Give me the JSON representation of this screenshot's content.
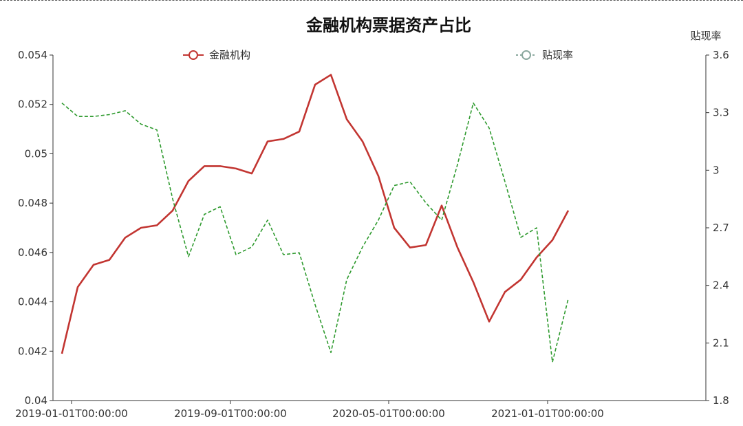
{
  "chart_data": {
    "type": "line",
    "title": "金融机构票据资产占比",
    "x_tick_labels": [
      "2019-01-01T00:00:00",
      "2019-09-01T00:00:00",
      "2020-05-01T00:00:00",
      "2021-01-01T00:00:00"
    ],
    "left_axis": {
      "ylim": [
        0.04,
        0.054
      ],
      "ticks": [
        "0.04",
        "0.042",
        "0.044",
        "0.046",
        "0.048",
        "0.05",
        "0.052",
        "0.054"
      ]
    },
    "right_axis": {
      "name": "贴现率",
      "ylim": [
        1.8,
        3.6
      ],
      "ticks": [
        "1.8",
        "2.1",
        "2.4",
        "2.7",
        "3",
        "3.3",
        "3.6"
      ]
    },
    "legend_placement": "top",
    "grid": false,
    "x": [
      "2019-01",
      "2019-02",
      "2019-03",
      "2019-04",
      "2019-05",
      "2019-06",
      "2019-07",
      "2019-08",
      "2019-09",
      "2019-10",
      "2019-11",
      "2019-12",
      "2020-01",
      "2020-02",
      "2020-03",
      "2020-04",
      "2020-05",
      "2020-06",
      "2020-07",
      "2020-08",
      "2020-09",
      "2020-10",
      "2020-11",
      "2020-12",
      "2021-01",
      "2021-02",
      "2021-03",
      "2021-04",
      "2021-05",
      "2021-06",
      "2021-07",
      "2021-08",
      "2021-09",
      "2021-10"
    ],
    "series": [
      {
        "name": "金融机构",
        "axis": "left",
        "style": "solid",
        "color": "#c23531",
        "values": [
          0.0419,
          0.0446,
          0.0455,
          0.0457,
          0.0466,
          0.047,
          0.0471,
          0.0477,
          0.0489,
          0.0495,
          0.0495,
          0.0494,
          0.0492,
          0.0505,
          0.0506,
          0.0509,
          0.0528,
          0.0532,
          0.0514,
          0.0505,
          0.0491,
          0.047,
          0.0462,
          0.0463,
          0.0479,
          0.0462,
          0.0448,
          0.0432,
          0.0444,
          0.0449,
          0.0458,
          0.0465,
          0.0477,
          null
        ]
      },
      {
        "name": "贴现率",
        "axis": "right",
        "style": "dashed",
        "color": "#2e9a2e",
        "legend_color": "#8aa89e",
        "values": [
          3.35,
          3.28,
          3.28,
          3.29,
          3.31,
          3.24,
          3.21,
          2.85,
          2.55,
          2.77,
          2.81,
          2.56,
          2.6,
          2.74,
          2.56,
          2.57,
          2.3,
          2.05,
          2.43,
          2.6,
          2.74,
          2.92,
          2.94,
          2.83,
          2.74,
          3.03,
          3.35,
          3.22,
          2.94,
          2.65,
          2.7,
          2.0,
          2.33,
          null
        ]
      }
    ]
  }
}
